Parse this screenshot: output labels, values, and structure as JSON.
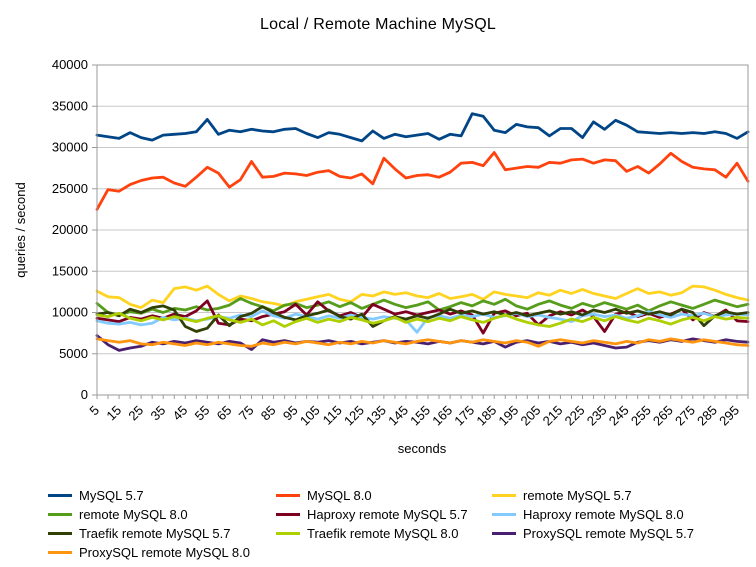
{
  "title": "Local / Remote Machine MySQL",
  "axes": {
    "y_title": "queries / second",
    "x_title": "seconds",
    "border_color": "#9b9b9b",
    "grid_color": "#c8c8c8"
  },
  "chart_data": {
    "type": "line",
    "title": "Local / Remote Machine MySQL",
    "xlabel": "seconds",
    "ylabel": "queries / second",
    "ylim": [
      0,
      40000
    ],
    "y_ticks": [
      0,
      5000,
      10000,
      15000,
      20000,
      25000,
      30000,
      35000,
      40000
    ],
    "grid": true,
    "legend_position": "bottom",
    "x": [
      5,
      10,
      15,
      20,
      25,
      30,
      35,
      40,
      45,
      50,
      55,
      60,
      65,
      70,
      75,
      80,
      85,
      90,
      95,
      100,
      105,
      110,
      115,
      120,
      125,
      130,
      135,
      140,
      145,
      150,
      155,
      160,
      165,
      170,
      175,
      180,
      185,
      190,
      195,
      200,
      205,
      210,
      215,
      220,
      225,
      230,
      235,
      240,
      245,
      250,
      255,
      260,
      265,
      270,
      275,
      280,
      285,
      290,
      295,
      300
    ],
    "series": [
      {
        "name": "MySQL 5.7",
        "color": "#004586",
        "values": [
          31500,
          31300,
          31100,
          31800,
          31200,
          30900,
          31500,
          31600,
          31700,
          31900,
          33400,
          31600,
          32100,
          31900,
          32200,
          32000,
          31900,
          32200,
          32300,
          31700,
          31200,
          31800,
          31600,
          31200,
          30800,
          32000,
          31100,
          31600,
          31300,
          31500,
          31700,
          31000,
          31600,
          31400,
          34100,
          33800,
          32100,
          31800,
          32800,
          32500,
          32400,
          31400,
          32300,
          32300,
          31200,
          33100,
          32200,
          33300,
          32700,
          31900,
          31800,
          31700,
          31800,
          31700,
          31800,
          31700,
          31900,
          31700,
          31100,
          31900
        ]
      },
      {
        "name": "MySQL 8.0",
        "color": "#FF420E",
        "values": [
          22500,
          24900,
          24700,
          25500,
          26000,
          26300,
          26400,
          25700,
          25300,
          26400,
          27600,
          26900,
          25200,
          26100,
          28300,
          26400,
          26500,
          26900,
          26800,
          26600,
          27000,
          27200,
          26500,
          26300,
          26800,
          25600,
          28700,
          27400,
          26300,
          26600,
          26700,
          26400,
          27000,
          28100,
          28200,
          27800,
          29400,
          27300,
          27500,
          27700,
          27600,
          28200,
          28100,
          28500,
          28600,
          28100,
          28500,
          28400,
          27100,
          27700,
          26900,
          28000,
          29300,
          28300,
          27600,
          27400,
          27300,
          26400,
          28100,
          25900
        ]
      },
      {
        "name": "remote MySQL 5.7",
        "color": "#FFD320",
        "values": [
          12600,
          11900,
          11800,
          11000,
          10600,
          11500,
          11200,
          12900,
          13100,
          12700,
          13200,
          12200,
          11400,
          12000,
          11700,
          11300,
          11100,
          10800,
          11300,
          11600,
          11900,
          12200,
          11600,
          11300,
          12200,
          12000,
          12500,
          12200,
          12400,
          12000,
          11800,
          12300,
          11700,
          11900,
          12200,
          11600,
          12500,
          12200,
          12000,
          11800,
          12400,
          12100,
          12700,
          12300,
          12800,
          12300,
          12000,
          11700,
          12300,
          12900,
          12300,
          12500,
          12100,
          12400,
          13200,
          13100,
          12700,
          12200,
          11800,
          11500
        ]
      },
      {
        "name": "remote MySQL 8.0",
        "color": "#579D1C",
        "values": [
          11100,
          10000,
          9700,
          10100,
          9900,
          10400,
          10000,
          10500,
          10300,
          10700,
          10300,
          10500,
          10900,
          11700,
          11100,
          10700,
          10200,
          10900,
          11100,
          10600,
          10900,
          11300,
          10700,
          11200,
          10500,
          11000,
          11500,
          11000,
          10600,
          10900,
          11300,
          10300,
          10700,
          11200,
          10800,
          11400,
          11000,
          11600,
          10800,
          10400,
          11000,
          11400,
          10900,
          10500,
          11100,
          10700,
          11200,
          10800,
          10400,
          10900,
          10200,
          10800,
          11300,
          10900,
          10500,
          11000,
          11500,
          11100,
          10700,
          11000
        ]
      },
      {
        "name": "Haproxy remote MySQL 5.7",
        "color": "#7E0021",
        "values": [
          9300,
          9100,
          8900,
          9400,
          9200,
          9600,
          9300,
          9800,
          9500,
          10200,
          11400,
          8700,
          8500,
          9200,
          9000,
          9500,
          9800,
          10100,
          11000,
          9700,
          11300,
          10200,
          9600,
          10000,
          9400,
          11000,
          10400,
          9800,
          10100,
          9700,
          10000,
          10300,
          9800,
          10200,
          9700,
          7500,
          9900,
          10200,
          9600,
          9900,
          8500,
          9600,
          10100,
          9700,
          10300,
          9500,
          7700,
          9800,
          10100,
          9500,
          9900,
          9400,
          9800,
          10400,
          9100,
          10000,
          9500,
          10300,
          9000,
          8900
        ]
      },
      {
        "name": "Haproxy remote MySQL 8.0",
        "color": "#83CAFF",
        "values": [
          9000,
          8700,
          8600,
          8800,
          8500,
          8700,
          9400,
          9100,
          9300,
          9000,
          9200,
          9500,
          9300,
          9700,
          9500,
          10200,
          9600,
          9300,
          9800,
          9500,
          9200,
          9600,
          9300,
          9700,
          9400,
          9200,
          9500,
          9300,
          9100,
          7600,
          9400,
          9600,
          9300,
          9700,
          9500,
          9800,
          9400,
          9600,
          9900,
          9500,
          9700,
          9400,
          9200,
          8900,
          9600,
          9800,
          9500,
          9700,
          9300,
          9600,
          10100,
          9700,
          9400,
          9800,
          9600,
          9900,
          9500,
          9700,
          9800,
          9700
        ]
      },
      {
        "name": "Traefik remote MySQL 5.7",
        "color": "#314004",
        "values": [
          9800,
          10000,
          9600,
          10400,
          10000,
          10600,
          10800,
          10300,
          8300,
          7700,
          8100,
          9700,
          8400,
          9500,
          9900,
          10700,
          10000,
          9400,
          9100,
          9600,
          9900,
          10300,
          9500,
          9200,
          9800,
          8300,
          9000,
          9500,
          9200,
          9600,
          9300,
          9800,
          10400,
          9900,
          10200,
          9800,
          10100,
          9700,
          10000,
          9600,
          9900,
          10200,
          9800,
          10100,
          9700,
          10300,
          10000,
          10400,
          9900,
          10200,
          9800,
          10100,
          9700,
          10400,
          10000,
          8400,
          9600,
          10100,
          9800,
          10000
        ]
      },
      {
        "name": "Traefik remote MySQL 8.0",
        "color": "#AECF00",
        "values": [
          9700,
          9500,
          9900,
          9300,
          9000,
          9400,
          9100,
          9500,
          9200,
          8900,
          9300,
          9600,
          9100,
          8800,
          9200,
          8500,
          9000,
          8300,
          8900,
          9300,
          8800,
          9200,
          8900,
          9400,
          9100,
          8700,
          9000,
          9400,
          8800,
          9200,
          8900,
          9300,
          9000,
          9500,
          9100,
          8800,
          9300,
          9700,
          9200,
          8800,
          8500,
          8300,
          8700,
          9200,
          8900,
          9400,
          9000,
          9500,
          9100,
          8800,
          9300,
          9000,
          8600,
          9100,
          9400,
          9000,
          9500,
          9200,
          9400,
          9300
        ]
      },
      {
        "name": "ProxySQL remote MySQL 5.7",
        "color": "#4B1F6F",
        "values": [
          7200,
          6100,
          5400,
          5700,
          5900,
          6400,
          6200,
          6500,
          6300,
          6600,
          6400,
          6200,
          6500,
          6300,
          5500,
          6700,
          6400,
          6600,
          6300,
          6500,
          6400,
          6600,
          6300,
          6500,
          6200,
          6400,
          6600,
          6300,
          6500,
          6400,
          6200,
          6500,
          6300,
          6600,
          6400,
          6200,
          6500,
          5800,
          6400,
          6600,
          6300,
          6500,
          6200,
          6400,
          6100,
          6300,
          6000,
          5700,
          5800,
          6400,
          6600,
          6400,
          6700,
          6500,
          6800,
          6600,
          6400,
          6700,
          6500,
          6400
        ]
      },
      {
        "name": "ProxySQL remote MySQL 8.0",
        "color": "#FF950E",
        "values": [
          6800,
          6600,
          6400,
          6600,
          6200,
          6100,
          6400,
          6200,
          6000,
          6300,
          6100,
          6400,
          6200,
          6000,
          5900,
          6300,
          6100,
          6400,
          6200,
          6500,
          6300,
          6100,
          6400,
          6200,
          6500,
          6300,
          6600,
          6400,
          6200,
          6500,
          6700,
          6500,
          6300,
          6600,
          6400,
          6700,
          6500,
          6300,
          6600,
          6400,
          5900,
          6500,
          6700,
          6500,
          6300,
          6600,
          6400,
          6200,
          6500,
          6300,
          6700,
          6500,
          6800,
          6600,
          6400,
          6700,
          6500,
          6300,
          6100,
          6000
        ]
      }
    ]
  }
}
